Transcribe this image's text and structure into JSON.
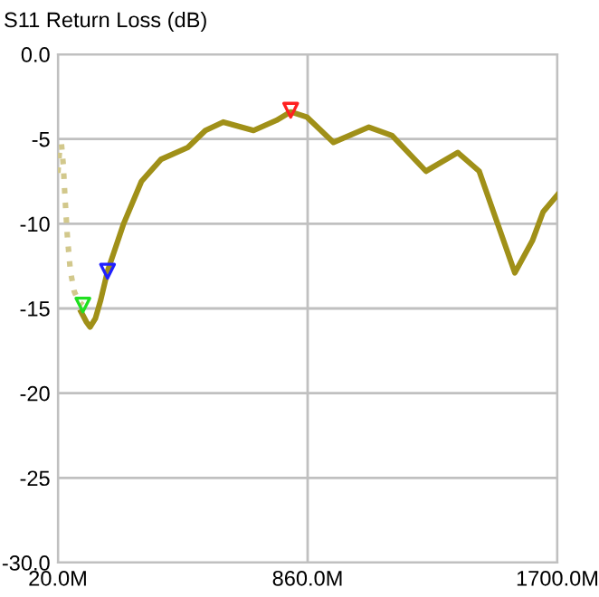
{
  "chart_data": {
    "type": "line",
    "title": "S11 Return Loss (dB)",
    "xlim": [
      20,
      1700
    ],
    "xticks": [
      {
        "value": 20,
        "label": "20.0M"
      },
      {
        "value": 860,
        "label": "860.0M"
      },
      {
        "value": 1700,
        "label": "1700.0M"
      }
    ],
    "ylim": [
      -30,
      0
    ],
    "yticks": [
      {
        "value": 0,
        "label": "0.0"
      },
      {
        "value": -5,
        "label": "-5"
      },
      {
        "value": -10,
        "label": "-10"
      },
      {
        "value": -15,
        "label": "-15"
      },
      {
        "value": -20,
        "label": "-20"
      },
      {
        "value": -25,
        "label": "-25"
      },
      {
        "value": -30,
        "label": "-30.0"
      }
    ],
    "grid": true,
    "series": [
      {
        "line_style": "dotted",
        "color": "#d2c88c",
        "x": [
          20,
          26,
          32,
          38,
          44,
          52,
          62,
          75,
          90,
          104
        ],
        "values": [
          -7.0,
          -5.6,
          -5.3,
          -6.5,
          -8.5,
          -10.8,
          -12.8,
          -14.0,
          -14.6,
          -14.8
        ]
      },
      {
        "line_style": "solid",
        "color": "#a09018",
        "x": [
          98,
          116,
          128,
          146,
          164,
          187,
          241,
          301,
          367,
          457,
          516,
          576,
          678,
          755,
          803,
          857,
          947,
          1066,
          1144,
          1258,
          1365,
          1437,
          1497,
          1557,
          1616,
          1652,
          1700
        ],
        "values": [
          -15.2,
          -15.8,
          -16.1,
          -15.6,
          -14.5,
          -12.8,
          -10.0,
          -7.5,
          -6.2,
          -5.5,
          -4.5,
          -4.0,
          -4.5,
          -3.9,
          -3.4,
          -3.7,
          -5.2,
          -4.3,
          -4.8,
          -6.9,
          -5.8,
          -6.9,
          -9.9,
          -12.9,
          -11.0,
          -9.3,
          -8.3
        ]
      },
      {
        "type": "scatter",
        "marker": "triangle",
        "colors": [
          "#20e020",
          "#2020ff",
          "#ff2020"
        ],
        "x": [
          104,
          187,
          803
        ],
        "values": [
          -14.8,
          -12.8,
          -3.3
        ]
      }
    ]
  }
}
